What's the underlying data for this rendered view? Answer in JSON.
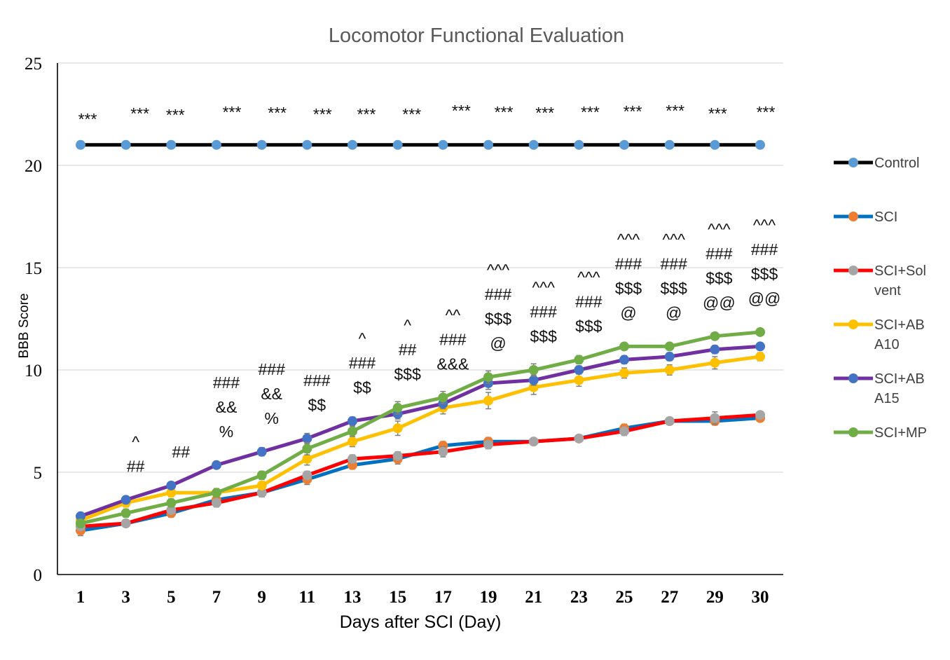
{
  "chart_data": {
    "type": "line",
    "title": "Locomotor Functional Evaluation",
    "xlabel": "Days after SCI (Day)",
    "ylabel": "BBB Score",
    "ylim": [
      0,
      25
    ],
    "yticks": [
      0,
      5,
      10,
      15,
      20,
      25
    ],
    "categories": [
      "1",
      "3",
      "5",
      "7",
      "9",
      "11",
      "13",
      "15",
      "17",
      "19",
      "21",
      "23",
      "25",
      "27",
      "29",
      "30"
    ],
    "grid": true,
    "legend_position": "right",
    "series": [
      {
        "name": "Control",
        "line_color": "#000000",
        "marker_color": "#5b9bd5",
        "values": [
          21,
          21,
          21,
          21,
          21,
          21,
          21,
          21,
          21,
          21,
          21,
          21,
          21,
          21,
          21,
          21
        ],
        "errors": [
          0,
          0,
          0,
          0,
          0,
          0,
          0,
          0,
          0,
          0,
          0,
          0,
          0,
          0,
          0,
          0
        ]
      },
      {
        "name": "SCI",
        "line_color": "#0070c0",
        "marker_color": "#ed7d31",
        "values": [
          2.15,
          2.5,
          3.0,
          3.65,
          4.0,
          4.65,
          5.35,
          5.65,
          6.3,
          6.5,
          6.5,
          6.65,
          7.15,
          7.5,
          7.5,
          7.65
        ],
        "errors": [
          0.25,
          0.15,
          0.2,
          0.2,
          0.2,
          0.25,
          0.2,
          0.25,
          0.2,
          0.2,
          0.15,
          0.15,
          0.2,
          0.15,
          0.2,
          0.15
        ]
      },
      {
        "name": "SCI+Sol vent",
        "legend_lines": [
          "SCI+Sol",
          "vent"
        ],
        "line_color": "#ff0000",
        "marker_color": "#a5a5a5",
        "values": [
          2.35,
          2.5,
          3.15,
          3.5,
          4.0,
          4.85,
          5.65,
          5.8,
          6.0,
          6.35,
          6.5,
          6.65,
          7.0,
          7.5,
          7.65,
          7.8
        ],
        "errors": [
          0.2,
          0.15,
          0.2,
          0.2,
          0.2,
          0.2,
          0.2,
          0.2,
          0.25,
          0.2,
          0.15,
          0.15,
          0.2,
          0.15,
          0.3,
          0.15
        ]
      },
      {
        "name": "SCI+ABA10",
        "legend_lines": [
          "SCI+AB",
          "A10"
        ],
        "line_color": "#ffc000",
        "marker_color": "#ffc000",
        "values": [
          2.65,
          3.5,
          4.0,
          4.0,
          4.35,
          5.65,
          6.5,
          7.15,
          8.15,
          8.5,
          9.15,
          9.5,
          9.85,
          10.0,
          10.35,
          10.65
        ],
        "errors": [
          0.2,
          0.2,
          0.2,
          0.2,
          0.2,
          0.3,
          0.25,
          0.35,
          0.3,
          0.4,
          0.35,
          0.3,
          0.25,
          0.25,
          0.3,
          0.2
        ]
      },
      {
        "name": "SCI+ABA15",
        "legend_lines": [
          "SCI+AB",
          "A15"
        ],
        "line_color": "#7030a0",
        "marker_color": "#4472c4",
        "values": [
          2.85,
          3.65,
          4.35,
          5.35,
          6.0,
          6.65,
          7.5,
          7.85,
          8.35,
          9.35,
          9.5,
          10.0,
          10.5,
          10.65,
          11.0,
          11.15
        ],
        "errors": [
          0.15,
          0.15,
          0.15,
          0.15,
          0.2,
          0.25,
          0.2,
          0.25,
          0.25,
          0.3,
          0.25,
          0.2,
          0.2,
          0.2,
          0.2,
          0.15
        ]
      },
      {
        "name": "SCI+MP",
        "line_color": "#70ad47",
        "marker_color": "#70ad47",
        "values": [
          2.5,
          3.0,
          3.5,
          4.0,
          4.85,
          6.15,
          7.0,
          8.15,
          8.65,
          9.65,
          10.0,
          10.5,
          11.15,
          11.15,
          11.65,
          11.85
        ],
        "errors": [
          0.2,
          0.2,
          0.2,
          0.2,
          0.2,
          0.3,
          0.25,
          0.3,
          0.3,
          0.3,
          0.3,
          0.2,
          0.15,
          0.15,
          0.15,
          0.15
        ]
      }
    ],
    "annotations": [
      [
        "***"
      ],
      [
        "***",
        "^",
        "##"
      ],
      [
        "***",
        "##"
      ],
      [
        "***",
        "###",
        "&&",
        "%"
      ],
      [
        "***",
        "###",
        "&&",
        "%"
      ],
      [
        "***",
        "###",
        "$$"
      ],
      [
        "***",
        "^",
        "###",
        "$$"
      ],
      [
        "***",
        "^",
        "##",
        "$$$"
      ],
      [
        "***",
        "^^",
        "###",
        "&&&"
      ],
      [
        "***",
        "^^^",
        "###",
        "$$$",
        "@"
      ],
      [
        "***",
        "^^^",
        "###",
        "$$$"
      ],
      [
        "***",
        "^^^",
        "###",
        "$$$"
      ],
      [
        "***",
        "^^^",
        "###",
        "$$$",
        "@"
      ],
      [
        "***",
        "^^^",
        "###",
        "$$$",
        "@"
      ],
      [
        "***",
        "^^^",
        "###",
        "$$$",
        "@@"
      ],
      [
        "***",
        "^^^",
        "###",
        "$$$",
        "@@"
      ]
    ]
  }
}
